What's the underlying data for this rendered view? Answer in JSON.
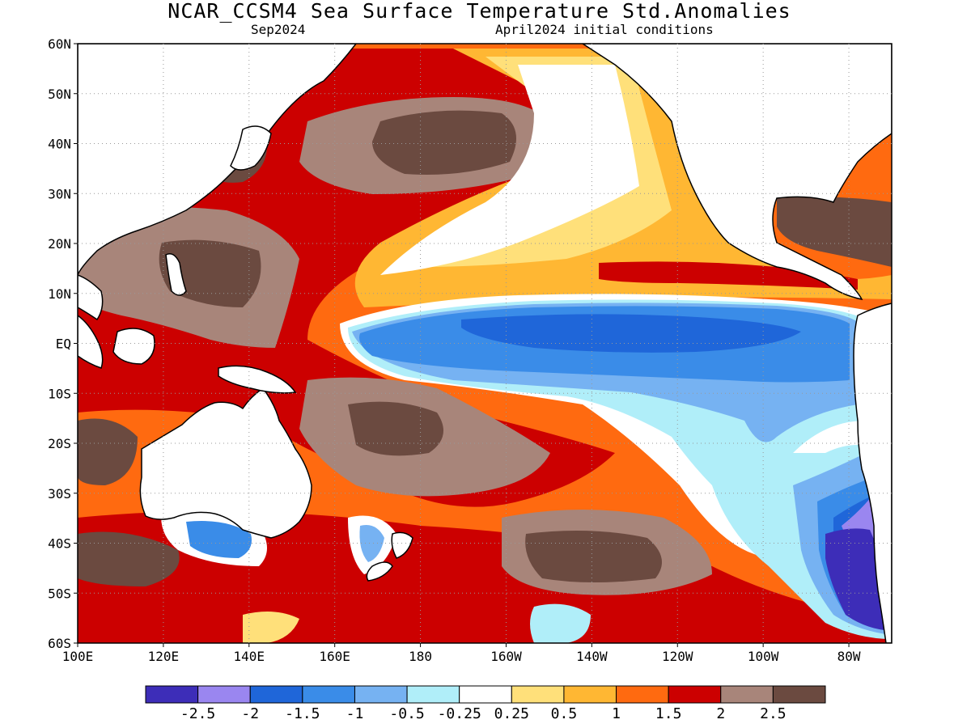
{
  "title": "NCAR_CCSM4 Sea Surface Temperature Std.Anomalies",
  "subtitle_left": "Sep2024",
  "subtitle_right": "April2024 initial conditions",
  "map": {
    "lon_range": [
      "100E",
      "70W"
    ],
    "lat_range": [
      "60S",
      "60N"
    ],
    "grid": "dotted",
    "y_ticks": [
      "60N",
      "50N",
      "40N",
      "30N",
      "20N",
      "10N",
      "EQ",
      "10S",
      "20S",
      "30S",
      "40S",
      "50S",
      "60S"
    ],
    "x_ticks": [
      "100E",
      "120E",
      "140E",
      "160E",
      "180",
      "160W",
      "140W",
      "120W",
      "100W",
      "80W"
    ],
    "x_tick_values": [
      100,
      120,
      140,
      160,
      180,
      200,
      220,
      240,
      260,
      280
    ],
    "y_tick_values": [
      60,
      50,
      40,
      30,
      20,
      10,
      0,
      -10,
      -20,
      -30,
      -40,
      -50,
      -60
    ]
  },
  "colorbar": {
    "colors": [
      "#3d2db8",
      "#9a86f0",
      "#1f66d9",
      "#3a8ce8",
      "#76b2f2",
      "#b0eef9",
      "#ffffff",
      "#ffe07a",
      "#ffb733",
      "#ff6a10",
      "#cc0000",
      "#a8857a",
      "#6b4a40"
    ],
    "labels": [
      "-2.5",
      "-2",
      "-1.5",
      "-1",
      "-0.5",
      "-0.25",
      "0.25",
      "0.5",
      "1",
      "1.5",
      "2",
      "2.5"
    ]
  },
  "colors": {
    "land": "#ffffff",
    "coast": "#000000",
    "grid": "#999999"
  }
}
